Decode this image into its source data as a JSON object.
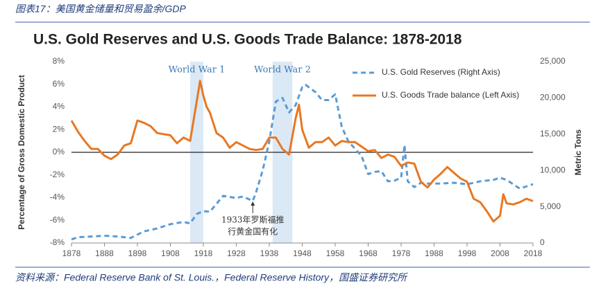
{
  "header": "图表17：美国黄金储量和贸易盈余/GDP",
  "source": "资料来源：Federal Reserve Bank of St. Louis.，Federal Reserve History，国盛证券研究所",
  "chart_data": {
    "type": "line",
    "title": "U.S. Gold Reserves and U.S. Goods Trade Balance: 1878-2018",
    "y_label": "Percentage of Gross Domestic Product",
    "y2_label": "Metric Tons",
    "xlim": [
      1878,
      2018
    ],
    "xticks": [
      1878,
      1888,
      1898,
      1908,
      1918,
      1928,
      1938,
      1948,
      1958,
      1968,
      1978,
      1988,
      1998,
      2008,
      2018
    ],
    "ylim": [
      -8,
      8
    ],
    "yticks": [
      {
        "value": -8,
        "label": "-8%"
      },
      {
        "value": -6,
        "label": "-6%"
      },
      {
        "value": -4,
        "label": "-4%"
      },
      {
        "value": -2,
        "label": "-2%"
      },
      {
        "value": 0,
        "label": "0%"
      },
      {
        "value": 2,
        "label": "2%"
      },
      {
        "value": 4,
        "label": "4%"
      },
      {
        "value": 6,
        "label": "6%"
      },
      {
        "value": 8,
        "label": "8%"
      }
    ],
    "y2lim": [
      0,
      25000
    ],
    "y2ticks": [
      0,
      {
        "value": 5000,
        "label": "5,000"
      },
      {
        "value": 10000,
        "label": "10,000"
      },
      {
        "value": 15000,
        "label": "15,000"
      },
      {
        "value": 20000,
        "label": "20,000"
      },
      {
        "value": 25000,
        "label": "25,000"
      }
    ],
    "legend": "upper right",
    "shaded": [
      {
        "label": "World War 1",
        "x": [
          1914,
          1918
        ]
      },
      {
        "label": "World War 2",
        "x": [
          1939,
          1945
        ]
      }
    ],
    "annotation": {
      "lines": [
        "1933年罗斯福推",
        "行黄金国有化"
      ],
      "x": 1933
    },
    "series": [
      {
        "name": "U.S. Gold Reserves (Right Axis)",
        "color": "#5b9bd5",
        "dashed": true,
        "axis": "y2",
        "x": [
          1878,
          1880,
          1884,
          1888,
          1892,
          1896,
          1900,
          1904,
          1908,
          1912,
          1914,
          1916,
          1918,
          1920,
          1924,
          1928,
          1930,
          1932,
          1933,
          1934,
          1936,
          1938,
          1940,
          1942,
          1944,
          1946,
          1948,
          1949,
          1952,
          1954,
          1956,
          1958,
          1960,
          1962,
          1964,
          1966,
          1968,
          1970,
          1972,
          1974,
          1976,
          1978,
          1979,
          1980,
          1982,
          1984,
          1986,
          1990,
          1994,
          1998,
          2002,
          2006,
          2008,
          2010,
          2014,
          2018
        ],
        "values": [
          500,
          800,
          900,
          1000,
          900,
          700,
          1600,
          2000,
          2600,
          2900,
          2700,
          4000,
          4400,
          4300,
          6500,
          6200,
          6400,
          6000,
          5800,
          7000,
          10000,
          14000,
          19500,
          20000,
          18000,
          19000,
          21500,
          21800,
          20800,
          19700,
          19700,
          20500,
          16000,
          14000,
          13000,
          12000,
          9500,
          9800,
          9900,
          8500,
          8600,
          9000,
          13500,
          8500,
          7700,
          8300,
          8200,
          8200,
          8300,
          8100,
          8500,
          8700,
          9000,
          8700,
          7500,
          8100
        ]
      },
      {
        "name": "U.S. Goods Trade balance (Left Axis)",
        "color": "#e87722",
        "dashed": false,
        "x": [
          1878,
          1880,
          1882,
          1884,
          1886,
          1888,
          1890,
          1892,
          1894,
          1896,
          1898,
          1900,
          1902,
          1904,
          1906,
          1908,
          1910,
          1912,
          1914,
          1916,
          1917,
          1918,
          1919,
          1920,
          1922,
          1924,
          1926,
          1928,
          1930,
          1932,
          1934,
          1936,
          1938,
          1940,
          1942,
          1944,
          1946,
          1947,
          1948,
          1950,
          1952,
          1954,
          1956,
          1958,
          1960,
          1962,
          1964,
          1966,
          1968,
          1970,
          1972,
          1974,
          1976,
          1978,
          1980,
          1982,
          1984,
          1986,
          1988,
          1990,
          1992,
          1994,
          1996,
          1998,
          2000,
          2002,
          2004,
          2006,
          2008,
          2009,
          2010,
          2012,
          2014,
          2016,
          2018
        ],
        "values": [
          2.8,
          1.8,
          1.0,
          0.3,
          0.3,
          -0.3,
          -0.6,
          -0.2,
          0.6,
          0.8,
          2.8,
          2.6,
          2.3,
          1.7,
          1.6,
          1.5,
          0.8,
          1.3,
          1.0,
          4.5,
          6.3,
          5.0,
          4.0,
          3.5,
          1.7,
          1.3,
          0.4,
          0.9,
          0.6,
          0.3,
          0.2,
          0.3,
          1.3,
          1.3,
          0.3,
          -0.2,
          3.0,
          4.2,
          2.0,
          0.4,
          0.9,
          0.9,
          1.3,
          0.6,
          1.0,
          0.9,
          0.9,
          0.5,
          0.1,
          0.2,
          -0.5,
          -0.2,
          -0.4,
          -1.2,
          -0.9,
          -1.0,
          -2.6,
          -3.1,
          -2.4,
          -1.9,
          -1.3,
          -1.8,
          -2.3,
          -2.6,
          -4.1,
          -4.4,
          -5.2,
          -6.1,
          -5.6,
          -3.7,
          -4.5,
          -4.6,
          -4.4,
          -4.1,
          -4.3
        ]
      }
    ]
  }
}
